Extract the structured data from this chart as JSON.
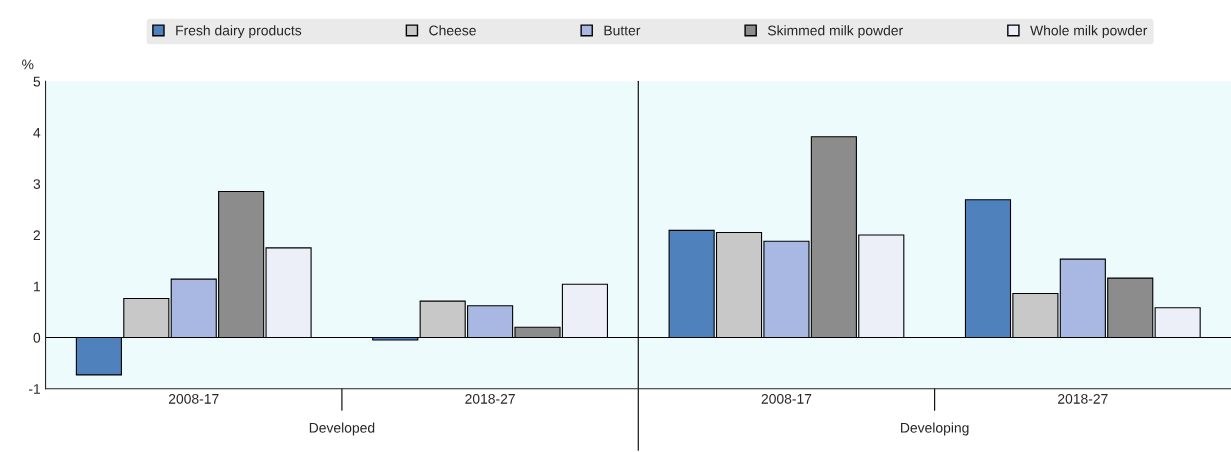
{
  "chart_data": {
    "type": "bar",
    "ylabel": "%",
    "categories": [
      "2008-17",
      "2018-27",
      "2008-17",
      "2018-27"
    ],
    "series": [
      {
        "name": "Fresh dairy products",
        "color": "#4f81bd",
        "values": [
          -0.73,
          -0.05,
          2.09,
          2.69
        ]
      },
      {
        "name": "Cheese",
        "color": "#c8c8c8",
        "values": [
          0.76,
          0.71,
          2.05,
          0.86
        ]
      },
      {
        "name": "Butter",
        "color": "#a9b8e3",
        "values": [
          1.14,
          0.62,
          1.88,
          1.53
        ]
      },
      {
        "name": "Skimmed milk powder",
        "color": "#8c8c8c",
        "values": [
          2.85,
          0.2,
          3.92,
          1.16
        ]
      },
      {
        "name": "Whole milk powder",
        "color": "#eceef8",
        "values": [
          1.75,
          1.04,
          2.0,
          0.58
        ]
      }
    ],
    "annotations": [
      "Developed",
      "Developing"
    ],
    "ref_lines": [
      {
        "axis": "y",
        "value": 0,
        "color": "#000000"
      }
    ],
    "ylim": [
      -1,
      5
    ],
    "yticks": [
      -1,
      0,
      1,
      2,
      3,
      4,
      5
    ],
    "grid": false,
    "legend": "top"
  }
}
